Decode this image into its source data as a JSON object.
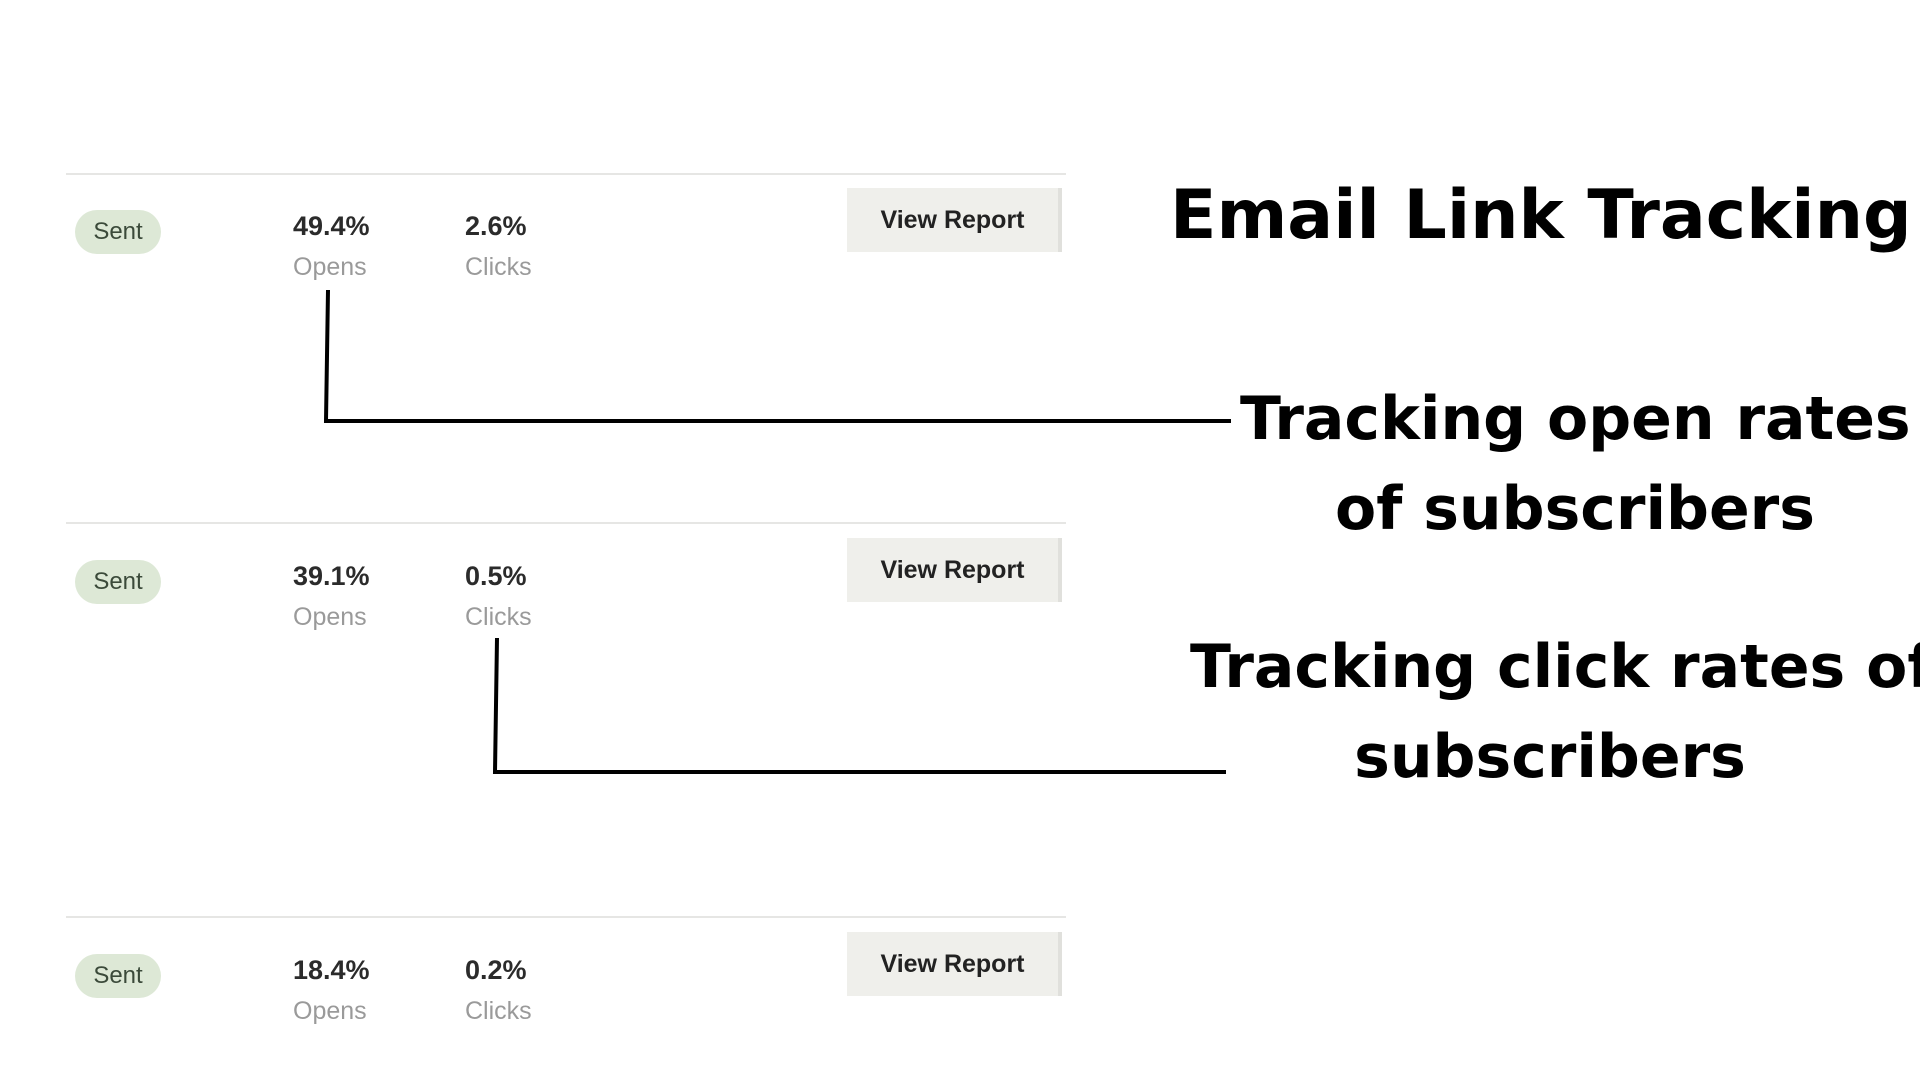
{
  "campaigns": [
    {
      "status": "Sent",
      "opens_value": "49.4%",
      "opens_label": "Opens",
      "clicks_value": "2.6%",
      "clicks_label": "Clicks",
      "button_label": "View Report"
    },
    {
      "status": "Sent",
      "opens_value": "39.1%",
      "opens_label": "Opens",
      "clicks_value": "0.5%",
      "clicks_label": "Clicks",
      "button_label": "View Report"
    },
    {
      "status": "Sent",
      "opens_value": "18.4%",
      "opens_label": "Opens",
      "clicks_value": "0.2%",
      "clicks_label": "Clicks",
      "button_label": "View Report"
    }
  ],
  "annotations": {
    "title": "Email Link Tracking",
    "opens_line1": "Tracking open rates",
    "opens_line2": "of subscribers",
    "clicks_line1": "Tracking click rates of",
    "clicks_line2": "subscribers"
  },
  "colors": {
    "status_badge_bg": "#dde8d6",
    "button_bg": "#efefeb",
    "callout_line": "#000000"
  }
}
